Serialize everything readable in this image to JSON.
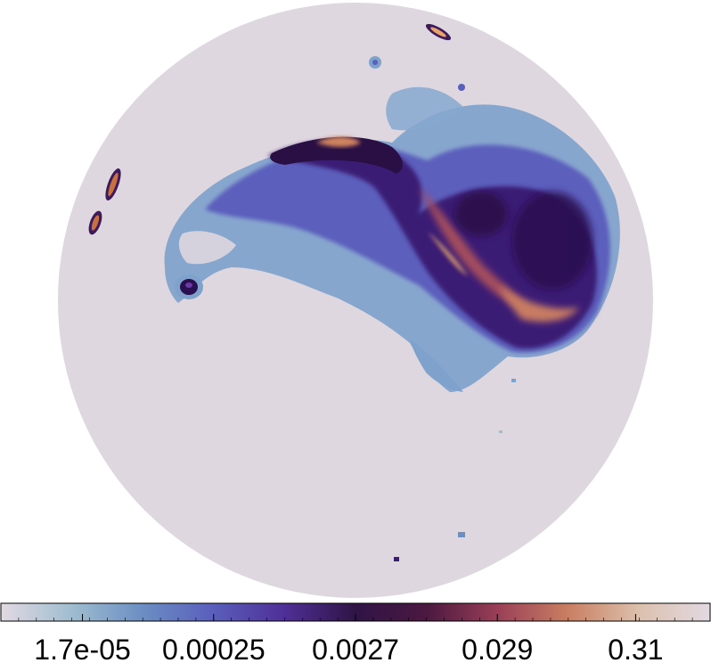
{
  "map": {
    "projection": "orthographic",
    "background_color": "#ded7df",
    "colormap": "twilight_shifted",
    "scale": "log",
    "colorbar": {
      "orientation": "horizontal",
      "position": "bottom",
      "stops": [
        "#e2d9e2",
        "#9fbdd0",
        "#6b8ec3",
        "#5a5ebc",
        "#4f2f96",
        "#2f1446",
        "#4b1840",
        "#9a3f57",
        "#c97f62",
        "#dcc0ad",
        "#e2d9e2"
      ],
      "tick_labels": [
        "1.7e-05",
        "0.00025",
        "0.0027",
        "0.029",
        "0.31"
      ]
    },
    "features": [
      {
        "name": "main-emission-region",
        "description": "Large bright structure, upper-right of disk",
        "colors": [
          "#7a9ac9",
          "#5b50b5",
          "#3a1a6a",
          "#a04a5a",
          "#d48a6a"
        ]
      },
      {
        "name": "left-twin-blobs",
        "colors": [
          "#3d1a5a",
          "#c8703f"
        ]
      },
      {
        "name": "top-elongated-blob",
        "colors": [
          "#3d1a5a",
          "#e8a36a"
        ]
      },
      {
        "name": "small-source-left",
        "colors": [
          "#2a1050",
          "#5a3aa0"
        ]
      },
      {
        "name": "small-source-bottom",
        "colors": [
          "#3a1a7a"
        ]
      }
    ]
  }
}
